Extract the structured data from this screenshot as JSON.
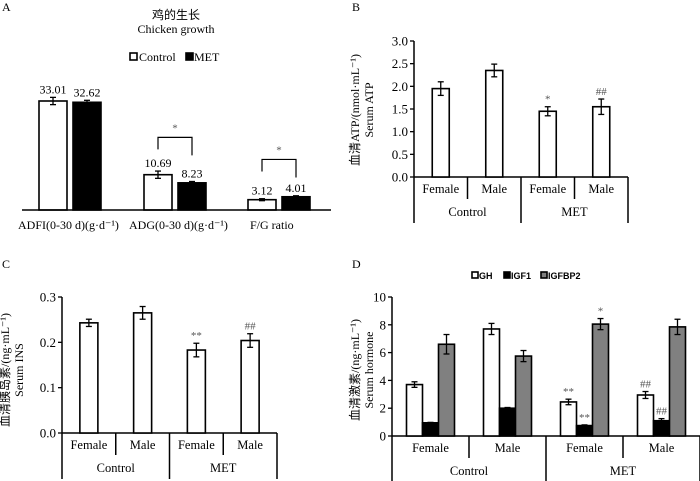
{
  "colors": {
    "control": "#ffffff",
    "met": "#000000",
    "gh": "#ffffff",
    "igf1": "#000000",
    "igfbp2": "#808080",
    "stroke": "#000000",
    "annot": "#555555"
  },
  "chart_data": [
    {
      "panel": "A",
      "type": "bar",
      "title_cn": "鸡的生长",
      "title": "Chicken growth",
      "categories": [
        "ADFI(0-30 d)(g·d⁻¹)",
        "ADG(0-30 d)(g·d⁻¹)",
        "F/G ratio"
      ],
      "series": [
        {
          "name": "Control",
          "values": [
            33.01,
            10.69,
            3.12
          ],
          "errors": [
            1.1,
            1.1,
            0.3
          ],
          "labels": [
            "33.01",
            "10.69",
            "3.12"
          ]
        },
        {
          "name": "MET",
          "values": [
            32.62,
            8.23,
            4.01
          ],
          "errors": [
            0.6,
            0.4,
            0.3
          ],
          "labels": [
            "32.62",
            "8.23",
            "4.01"
          ]
        }
      ],
      "significance": [
        {
          "category": "ADG(0-30 d)(g·d⁻¹)",
          "mark": "*"
        },
        {
          "category": "F/G ratio",
          "mark": "*"
        }
      ],
      "legend": [
        "Control",
        "MET"
      ],
      "legend_position": "top-center",
      "ylim": [
        0,
        35
      ],
      "grid": false
    },
    {
      "panel": "B",
      "type": "bar",
      "ylabel_cn": "血清ATP/(nmol·mL⁻¹)",
      "ylabel": "Serum ATP",
      "groups": [
        "Control",
        "MET"
      ],
      "categories": [
        "Female",
        "Male",
        "Female",
        "Male"
      ],
      "values": [
        1.95,
        2.35,
        1.45,
        1.55
      ],
      "errors": [
        0.15,
        0.14,
        0.1,
        0.17
      ],
      "annotations": [
        "",
        "",
        "*",
        "##"
      ],
      "yticks": [
        "0.0",
        "0.5",
        "1.0",
        "1.5",
        "2.0",
        "2.5",
        "3.0"
      ],
      "ylim": [
        0,
        3.0
      ],
      "grid": false
    },
    {
      "panel": "C",
      "type": "bar",
      "ylabel_cn": "血清胰岛素/(ng·mL⁻¹)",
      "ylabel": "Serum INS",
      "groups": [
        "Control",
        "MET"
      ],
      "categories": [
        "Female",
        "Male",
        "Female",
        "Male"
      ],
      "values": [
        0.243,
        0.265,
        0.183,
        0.204
      ],
      "errors": [
        0.008,
        0.014,
        0.015,
        0.015
      ],
      "annotations": [
        "",
        "",
        "**",
        "##"
      ],
      "yticks": [
        "0.0",
        "0.1",
        "0.2",
        "0.3"
      ],
      "ylim": [
        0,
        0.3
      ],
      "grid": false
    },
    {
      "panel": "D",
      "type": "bar",
      "ylabel_cn": "血清激素/(ng·mL⁻¹)",
      "ylabel": "Serum hormone",
      "groups": [
        "Control",
        "MET"
      ],
      "categories": [
        "Female",
        "Male",
        "Female",
        "Male"
      ],
      "series": [
        {
          "name": "GH",
          "values": [
            3.7,
            7.7,
            2.45,
            2.95
          ],
          "errors": [
            0.2,
            0.4,
            0.2,
            0.25
          ],
          "annotations": [
            "",
            "",
            "**",
            "##"
          ]
        },
        {
          "name": "IGF1",
          "values": [
            0.95,
            2.0,
            0.75,
            1.1
          ],
          "errors": [
            0.03,
            0.05,
            0.05,
            0.15
          ],
          "annotations": [
            "",
            "",
            "**",
            "##"
          ]
        },
        {
          "name": "IGFBP2",
          "values": [
            6.6,
            5.75,
            8.05,
            7.85
          ],
          "errors": [
            0.7,
            0.4,
            0.4,
            0.55
          ],
          "annotations": [
            "",
            "",
            "*",
            ""
          ]
        }
      ],
      "legend": [
        "GH",
        "IGF1",
        "IGFBP2"
      ],
      "legend_position": "top-center",
      "yticks": [
        "0",
        "2",
        "4",
        "6",
        "8",
        "10"
      ],
      "ylim": [
        0,
        10
      ],
      "grid": false
    }
  ],
  "panel_labels": [
    "A",
    "B",
    "C",
    "D"
  ]
}
